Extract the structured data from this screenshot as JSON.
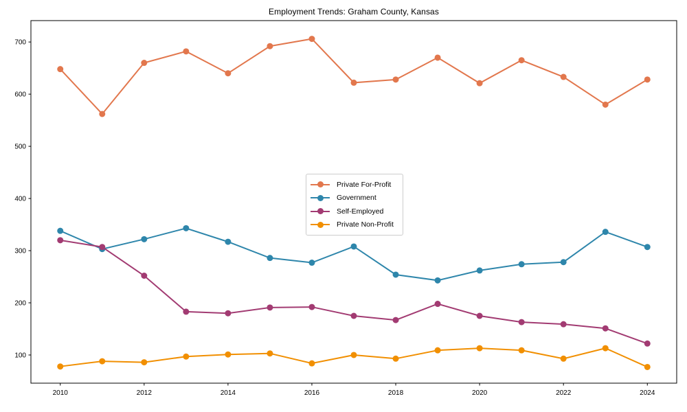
{
  "figure": {
    "background": "#ffffff",
    "axis_color": "#000000"
  },
  "chart_data": {
    "type": "line",
    "title": "Employment Trends: Graham County, Kansas",
    "xlabel": "",
    "ylabel": "",
    "x": [
      2010,
      2011,
      2012,
      2013,
      2014,
      2015,
      2016,
      2017,
      2018,
      2019,
      2020,
      2021,
      2022,
      2023,
      2024
    ],
    "series": [
      {
        "name": "Private For-Profit",
        "color": "#E2774D",
        "values": [
          648,
          562,
          660,
          682,
          640,
          692,
          706,
          622,
          628,
          670,
          621,
          665,
          633,
          580,
          628
        ]
      },
      {
        "name": "Government",
        "color": "#2E86AB",
        "values": [
          338,
          303,
          322,
          343,
          317,
          286,
          277,
          308,
          254,
          243,
          262,
          274,
          278,
          336,
          307
        ]
      },
      {
        "name": "Self-Employed",
        "color": "#A23B72",
        "values": [
          320,
          307,
          252,
          183,
          180,
          191,
          192,
          175,
          167,
          198,
          175,
          163,
          159,
          151,
          122
        ]
      },
      {
        "name": "Private Non-Profit",
        "color": "#F18F01",
        "values": [
          78,
          88,
          86,
          97,
          101,
          103,
          84,
          100,
          93,
          109,
          113,
          109,
          93,
          113,
          77
        ]
      }
    ],
    "xticks": [
      2010,
      2012,
      2014,
      2016,
      2018,
      2020,
      2022,
      2024
    ],
    "yticks": [
      100,
      200,
      300,
      400,
      500,
      600,
      700
    ],
    "xlim": [
      2009.3,
      2024.7
    ],
    "ylim": [
      46,
      741
    ],
    "grid": false,
    "legend_position": "center",
    "marker": "circle",
    "marker_radius": 4.5,
    "line_width": 2
  }
}
